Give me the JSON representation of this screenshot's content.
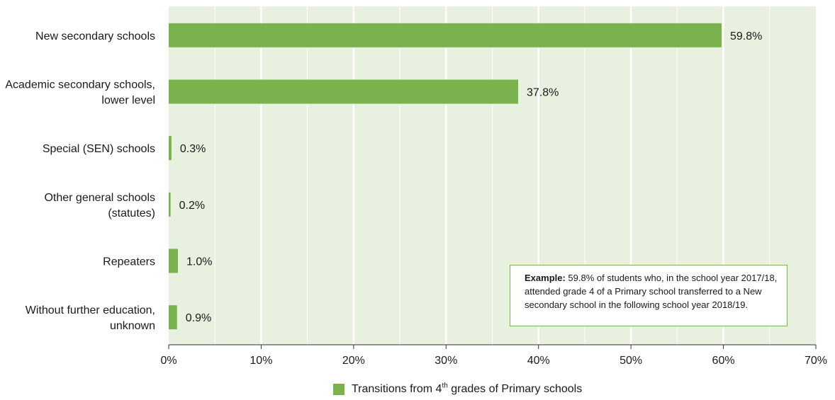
{
  "chart_data": {
    "type": "bar",
    "orientation": "horizontal",
    "categories": [
      [
        "New secondary schools"
      ],
      [
        "Academic secondary schools,",
        "lower level"
      ],
      [
        "Special (SEN) schools"
      ],
      [
        "Other general schools",
        "(statutes)"
      ],
      [
        "Repeaters"
      ],
      [
        "Without further education,",
        "unknown"
      ]
    ],
    "series": [
      {
        "values": [
          59.8,
          37.8,
          0.3,
          0.2,
          1.0,
          0.9
        ],
        "value_labels": [
          "59.8%",
          "37.8%",
          "0.3%",
          "0.2%",
          "1.0%",
          "0.9%"
        ],
        "color": "#7ab24e"
      }
    ],
    "xlim": [
      0,
      70
    ],
    "x_ticks": [
      0,
      10,
      20,
      30,
      40,
      50,
      60,
      70
    ],
    "x_tick_labels": [
      "0%",
      "10%",
      "20%",
      "30%",
      "40%",
      "50%",
      "60%",
      "70%"
    ],
    "grid": true,
    "plot_background": "#e8f1df",
    "legend_position": "bottom-center",
    "legend": {
      "prefix": "Transitions from 4",
      "superscript": "th",
      "suffix": " grades of Primary schools"
    }
  },
  "annotation": {
    "label": "Example:",
    "text": " 59.8% of students who, in the school year 2017/18, attended grade 4 of a Primary school transferred to a New secondary school in the following school year 2018/19."
  }
}
